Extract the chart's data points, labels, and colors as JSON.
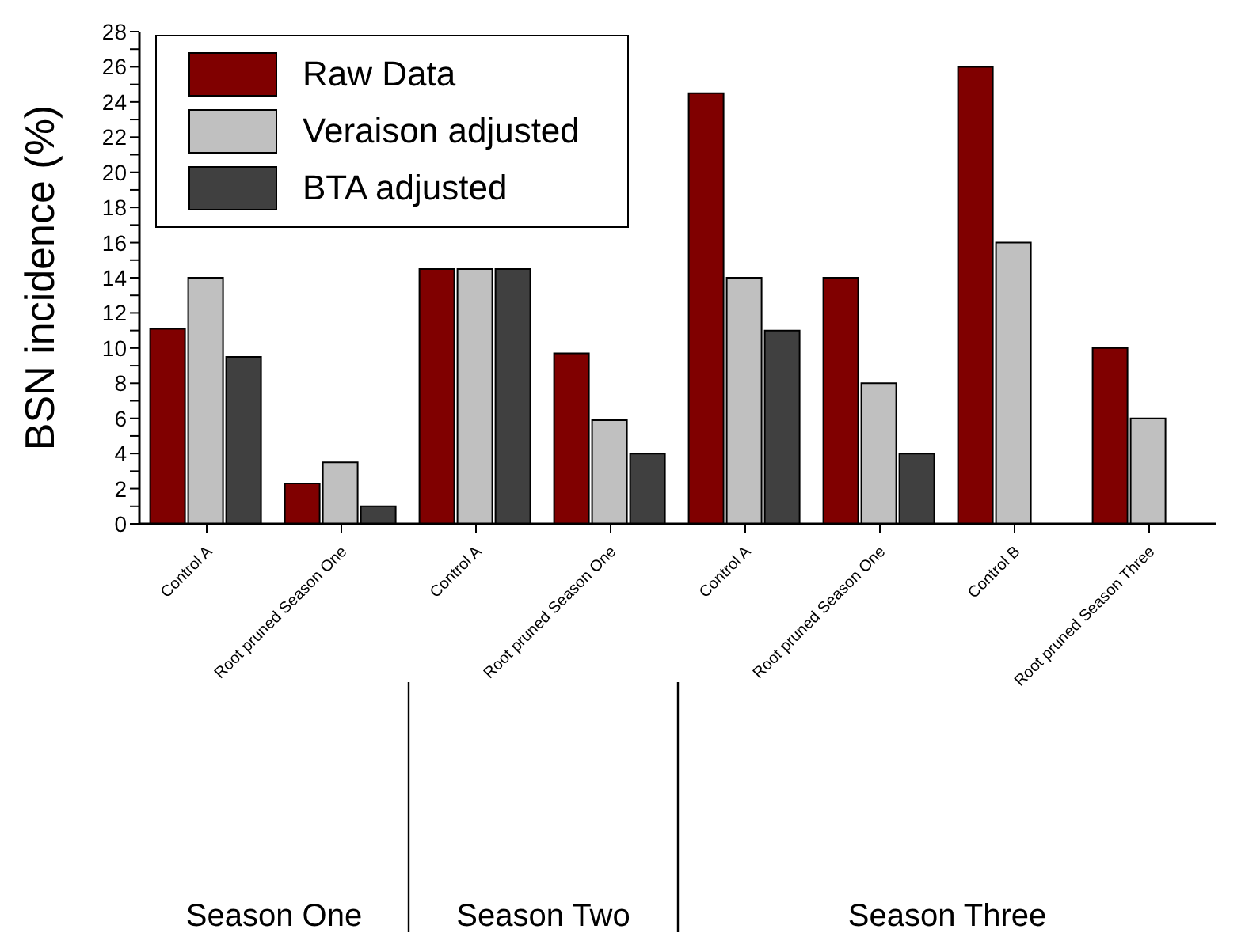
{
  "chart_data": {
    "type": "bar",
    "ylabel": "BSN incidence (%)",
    "categories": [
      "Control A",
      "Root pruned Season One",
      "Control A",
      "Root pruned Season One",
      "Control A",
      "Root pruned Season One",
      "Control B",
      "Root pruned Season Three"
    ],
    "series": [
      {
        "name": "Raw Data",
        "color": "#800000",
        "values": [
          11.1,
          2.3,
          14.5,
          9.7,
          24.5,
          14,
          26,
          10
        ]
      },
      {
        "name": "Veraison adjusted",
        "color": "#c0c0c0",
        "values": [
          14,
          3.5,
          14.5,
          5.9,
          14,
          8,
          16,
          6
        ]
      },
      {
        "name": "BTA adjusted",
        "color": "#404040",
        "values": [
          9.5,
          1,
          14.5,
          4,
          11,
          4,
          null,
          null
        ]
      }
    ],
    "ylim": [
      0,
      28
    ],
    "yticks": [
      0,
      {
        "value": 1,
        "label": null
      },
      2,
      {
        "value": 3,
        "label": null
      },
      4,
      {
        "value": 5,
        "label": null
      },
      6,
      {
        "value": 7,
        "label": null
      },
      8,
      {
        "value": 9,
        "label": null
      },
      10,
      {
        "value": 11,
        "label": null
      },
      12,
      {
        "value": 13,
        "label": null
      },
      14,
      {
        "value": 15,
        "label": null
      },
      16,
      {
        "value": 17,
        "label": null
      },
      18,
      {
        "value": 19,
        "label": null
      },
      20,
      {
        "value": 21,
        "label": null
      },
      22,
      {
        "value": 23,
        "label": null
      },
      24,
      {
        "value": 25,
        "label": null
      },
      26,
      {
        "value": 27,
        "label": null
      },
      28
    ],
    "annotations": [
      "Season One",
      "Season Two",
      "Season Three"
    ],
    "legend": "top left",
    "grid": false
  }
}
